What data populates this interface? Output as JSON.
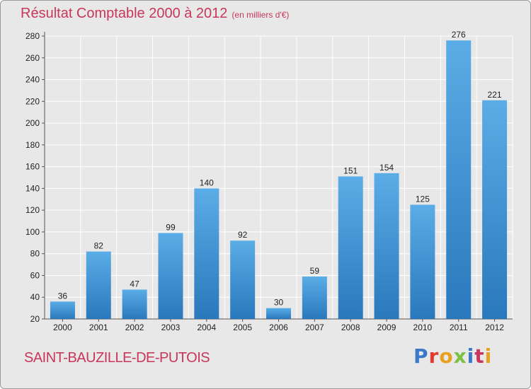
{
  "header": {
    "title": "Résultat Comptable 2000 à 2012",
    "subtitle": "(en milliers d'€)"
  },
  "footer": {
    "commune": "SAINT-BAUZILLE-DE-PUTOIS",
    "logo_text": "Proxiti"
  },
  "colors": {
    "title": "#c8365a",
    "bar_top": "#5aade6",
    "bar_bottom": "#2a78bc",
    "plot_background": "#e8e8e8",
    "grid": "#ffffff"
  },
  "chart_data": {
    "type": "bar",
    "title": "Résultat Comptable 2000 à 2012",
    "subtitle": "(en milliers d'€)",
    "xlabel": "",
    "ylabel": "",
    "categories": [
      "2000",
      "2001",
      "2002",
      "2003",
      "2004",
      "2005",
      "2006",
      "2007",
      "2008",
      "2009",
      "2010",
      "2011",
      "2012"
    ],
    "values": [
      36,
      82,
      47,
      99,
      140,
      92,
      30,
      59,
      151,
      154,
      125,
      276,
      221
    ],
    "data_labels": [
      "36",
      "82",
      "47",
      "99",
      "140",
      "92",
      "30",
      "59",
      "151",
      "154",
      "125",
      "276",
      "221"
    ],
    "ylim": [
      20,
      280
    ],
    "yticks": [
      20,
      40,
      60,
      80,
      100,
      120,
      140,
      160,
      180,
      200,
      220,
      240,
      260,
      280
    ],
    "grid": true,
    "legend": "none"
  }
}
